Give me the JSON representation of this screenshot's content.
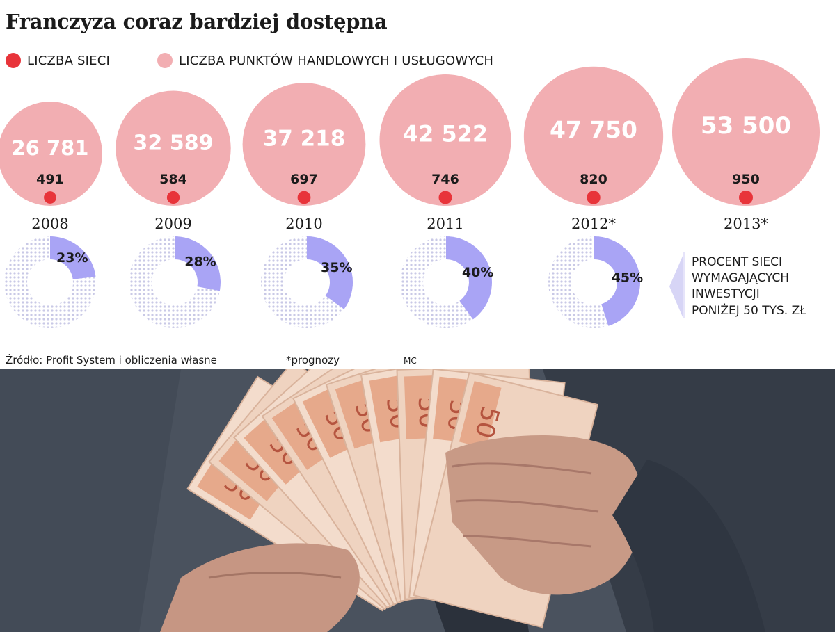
{
  "title": "Franczyza coraz bardziej dostępna",
  "legend": [
    {
      "label": "LICZBA SIECI",
      "color": "#e8343a"
    },
    {
      "label": "LICZBA PUNKTÓW HANDLOWYCH I USŁUGOWYCH",
      "color": "#f2aeb2"
    }
  ],
  "colors": {
    "outlets": "#f2aeb2",
    "networks": "#e8343a",
    "percent_fill": "#a9a4f5",
    "percent_rest": "#dcdcf0"
  },
  "chart_data": {
    "type": "bubble",
    "categories": [
      "2008",
      "2009",
      "2010",
      "2011",
      "2012*",
      "2013*"
    ],
    "series": [
      {
        "name": "LICZBA PUNKTÓW HANDLOWYCH I USŁUGOWYCH",
        "values": [
          26781,
          32589,
          37218,
          42522,
          47750,
          53500
        ],
        "labels": [
          "26 781",
          "32 589",
          "37 218",
          "42 522",
          "47 750",
          "53 500"
        ]
      },
      {
        "name": "LICZBA SIECI",
        "values": [
          491,
          584,
          697,
          746,
          820,
          950
        ],
        "labels": [
          "491",
          "584",
          "697",
          "746",
          "820",
          "950"
        ]
      },
      {
        "name": "PROCENT SIECI WYMAGAJĄCYCH INWESTYCJI PONIŻEJ 50 TYS. ZŁ",
        "values": [
          23,
          28,
          35,
          40,
          45
        ],
        "labels": [
          "23%",
          "28%",
          "35%",
          "40%",
          "45%"
        ]
      }
    ]
  },
  "percent_note": [
    "PROCENT SIECI",
    "WYMAGAJĄCYCH",
    "INWESTYCJI",
    "PONIŻEJ 50 TYS. ZŁ"
  ],
  "source": "Źródło: Profit System i obliczenia własne",
  "footnote": "*prognozy",
  "author": "MC"
}
